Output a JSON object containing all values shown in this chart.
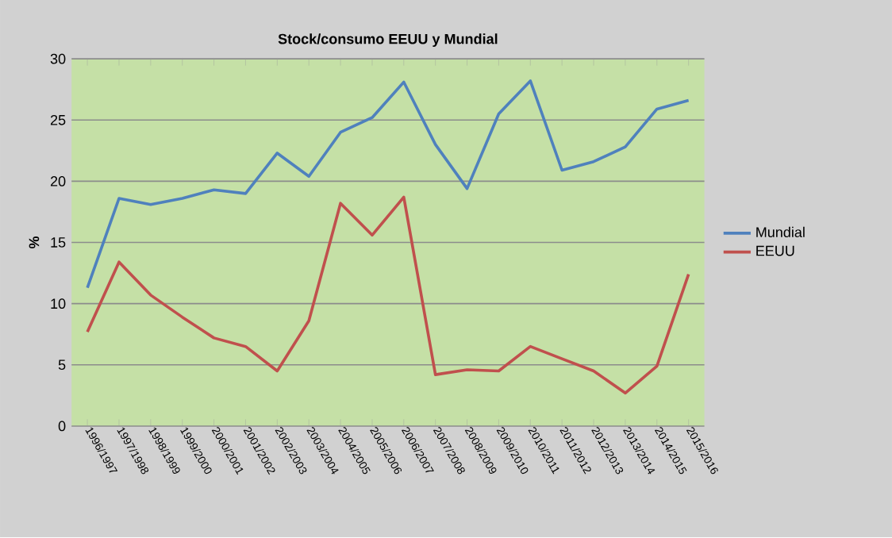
{
  "chart_data": {
    "type": "line",
    "title": "Stock/consumo EEUU y Mundial",
    "ylabel": "%",
    "categories": [
      "1996/1997",
      "1997/1998",
      "1998/1999",
      "1999/2000",
      "2000/2001",
      "2001/2002",
      "2002/2003",
      "2003/2004",
      "2004/2005",
      "2005/2006",
      "2006/2007",
      "2007/2008",
      "2008/2009",
      "2009/2010",
      "2010/2011",
      "2011/2012",
      "2012/2013",
      "2013/2014",
      "2014/2015",
      "2015/2016"
    ],
    "series": [
      {
        "name": "Mundial",
        "color": "#4f81bd",
        "values": [
          11.3,
          18.6,
          18.1,
          18.6,
          19.3,
          19.0,
          22.3,
          20.4,
          24.0,
          25.2,
          28.1,
          23.0,
          19.4,
          25.5,
          28.2,
          20.9,
          21.6,
          22.8,
          25.9,
          26.6
        ]
      },
      {
        "name": "EEUU",
        "color": "#c0504d",
        "values": [
          7.7,
          13.4,
          10.7,
          8.9,
          7.2,
          6.5,
          4.5,
          8.6,
          18.2,
          15.6,
          18.7,
          4.2,
          4.6,
          4.5,
          6.5,
          5.5,
          4.5,
          2.7,
          4.9,
          12.4
        ]
      }
    ],
    "ylim": [
      0,
      30
    ],
    "yticks": [
      0,
      5,
      10,
      15,
      20,
      25,
      30
    ],
    "grid": "y",
    "legend": "right",
    "marker": "none",
    "line_style": "solid"
  }
}
